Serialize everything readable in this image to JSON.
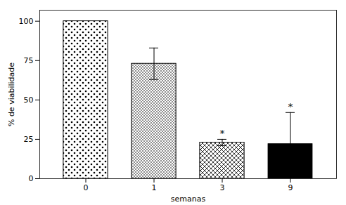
{
  "chart_data": {
    "type": "bar",
    "xlabel": "semanas",
    "ylabel": "% de viabilidade",
    "categories": [
      "0",
      "1",
      "3",
      "9"
    ],
    "values": [
      100,
      73,
      23,
      22
    ],
    "errors": [
      0,
      10,
      2,
      20
    ],
    "colors": [
      "white",
      "white",
      "white",
      "black"
    ],
    "ylim": [
      0,
      107
    ],
    "yticks": [
      0,
      25,
      50,
      75,
      100
    ],
    "grid": false,
    "annotations": [
      {
        "category": "3",
        "text": "*"
      },
      {
        "category": "9",
        "text": "*"
      }
    ]
  }
}
